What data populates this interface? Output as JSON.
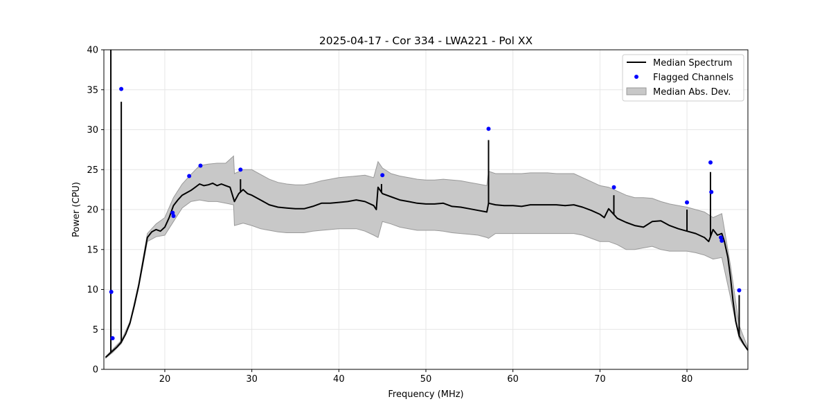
{
  "chart_data": {
    "type": "line",
    "title": "2025-04-17 - Cor 334 - LWA221 - Pol XX",
    "xlabel": "Frequency (MHz)",
    "ylabel": "Power (CPU)",
    "xlim": [
      13.0,
      87.0
    ],
    "ylim": [
      0,
      40
    ],
    "xticks": [
      "20",
      "30",
      "40",
      "50",
      "60",
      "70",
      "80"
    ],
    "yticks": [
      "0",
      "5",
      "10",
      "15",
      "20",
      "25",
      "30",
      "35",
      "40"
    ],
    "grid": true,
    "legend_position": "upper-right",
    "legend": {
      "median": "Median Spectrum",
      "flagged": "Flagged Channels",
      "mad": "Median Abs. Dev."
    },
    "colors": {
      "median": "#000000",
      "flagged": "#0000ff",
      "mad_fill": "#c8c8c8",
      "mad_edge": "#999999"
    },
    "series": [
      {
        "name": "Median Spectrum",
        "kind": "line",
        "x": [
          13.2,
          13.5,
          14.0,
          14.5,
          15.0,
          15.5,
          16.0,
          16.5,
          17.0,
          17.5,
          18.0,
          18.5,
          19.0,
          19.5,
          20.0,
          20.5,
          21.0,
          21.5,
          22.0,
          22.5,
          23.0,
          23.5,
          24.0,
          24.5,
          25.0,
          25.5,
          26.0,
          26.5,
          27.0,
          27.5,
          28.0,
          28.5,
          29.0,
          29.5,
          30.0,
          31.0,
          32.0,
          33.0,
          34.0,
          35.0,
          36.0,
          37.0,
          38.0,
          39.0,
          40.0,
          41.0,
          42.0,
          43.0,
          44.0,
          44.3,
          44.5,
          45.0,
          46.0,
          47.0,
          48.0,
          49.0,
          50.0,
          51.0,
          52.0,
          53.0,
          54.0,
          55.0,
          56.0,
          57.0,
          57.2,
          58.0,
          59.0,
          60.0,
          61.0,
          62.0,
          63.0,
          64.0,
          65.0,
          66.0,
          67.0,
          68.0,
          69.0,
          70.0,
          70.5,
          71.0,
          72.0,
          73.0,
          74.0,
          75.0,
          76.0,
          77.0,
          78.0,
          79.0,
          80.0,
          81.0,
          82.0,
          82.5,
          83.0,
          83.5,
          84.0,
          84.3,
          84.7,
          85.0,
          85.3,
          85.6,
          86.0,
          86.5,
          87.0
        ],
        "y": [
          1.5,
          1.8,
          2.3,
          2.8,
          3.4,
          4.4,
          5.8,
          8.0,
          10.5,
          13.5,
          16.5,
          17.2,
          17.5,
          17.3,
          17.8,
          19.0,
          20.5,
          21.2,
          21.8,
          22.1,
          22.4,
          22.8,
          23.2,
          23.0,
          23.1,
          23.3,
          23.0,
          23.2,
          23.0,
          22.8,
          21.0,
          22.0,
          22.5,
          22.0,
          21.8,
          21.2,
          20.6,
          20.3,
          20.2,
          20.1,
          20.1,
          20.4,
          20.8,
          20.8,
          20.9,
          21.0,
          21.2,
          21.0,
          20.5,
          20.0,
          22.8,
          22.0,
          21.6,
          21.2,
          21.0,
          20.8,
          20.7,
          20.7,
          20.8,
          20.4,
          20.3,
          20.1,
          19.9,
          19.7,
          20.8,
          20.6,
          20.5,
          20.5,
          20.4,
          20.6,
          20.6,
          20.6,
          20.6,
          20.5,
          20.6,
          20.3,
          19.9,
          19.4,
          19.0,
          20.1,
          18.9,
          18.4,
          18.0,
          17.8,
          18.5,
          18.6,
          18.0,
          17.6,
          17.3,
          17.0,
          16.5,
          16.0,
          17.5,
          16.8,
          17.0,
          16.0,
          14.0,
          11.5,
          8.5,
          6.0,
          4.2,
          3.2,
          2.4
        ],
        "spikes": [
          [
            13.8,
            40.0
          ],
          [
            15.0,
            33.5
          ],
          [
            28.7,
            23.8
          ],
          [
            44.9,
            23.2
          ],
          [
            57.2,
            28.7
          ],
          [
            71.6,
            21.8
          ],
          [
            80.0,
            20.0
          ],
          [
            82.7,
            24.7
          ],
          [
            86.0,
            9.3
          ]
        ]
      },
      {
        "name": "Flagged Channels",
        "kind": "scatter",
        "x": [
          13.85,
          14.0,
          15.0,
          20.9,
          21.0,
          22.8,
          24.1,
          28.7,
          45.0,
          57.2,
          71.6,
          80.0,
          82.7,
          82.8,
          83.9,
          84.0,
          86.0
        ],
        "y": [
          9.7,
          3.9,
          35.1,
          19.6,
          19.2,
          24.2,
          25.5,
          25.0,
          24.3,
          30.1,
          22.8,
          20.9,
          25.9,
          22.2,
          16.5,
          16.1,
          9.9
        ]
      },
      {
        "name": "Median Abs. Dev.",
        "kind": "band",
        "x": [
          13.2,
          14.0,
          15.0,
          16.0,
          17.0,
          18.0,
          19.0,
          20.0,
          21.0,
          22.0,
          23.0,
          24.0,
          25.0,
          26.0,
          27.0,
          27.9,
          28.0,
          29.0,
          30.0,
          31.0,
          32.0,
          33.0,
          34.0,
          35.0,
          36.0,
          37.0,
          38.0,
          39.0,
          40.0,
          41.0,
          42.0,
          43.0,
          44.0,
          44.5,
          45.0,
          46.0,
          47.0,
          48.0,
          49.0,
          50.0,
          51.0,
          52.0,
          53.0,
          54.0,
          55.0,
          56.0,
          57.0,
          57.2,
          58.0,
          59.0,
          60.0,
          61.0,
          62.0,
          63.0,
          64.0,
          65.0,
          66.0,
          67.0,
          68.0,
          69.0,
          70.0,
          71.0,
          72.0,
          73.0,
          74.0,
          75.0,
          76.0,
          77.0,
          78.0,
          79.0,
          80.0,
          81.0,
          82.0,
          83.0,
          84.0,
          85.0,
          86.0,
          87.0
        ],
        "lower": [
          1.4,
          2.1,
          3.2,
          5.6,
          10.2,
          16.0,
          16.6,
          16.8,
          18.5,
          20.2,
          21.0,
          21.2,
          21.0,
          21.0,
          20.8,
          20.6,
          18.0,
          18.3,
          18.0,
          17.6,
          17.4,
          17.2,
          17.1,
          17.1,
          17.1,
          17.3,
          17.4,
          17.5,
          17.6,
          17.6,
          17.6,
          17.3,
          16.8,
          16.5,
          18.5,
          18.2,
          17.8,
          17.6,
          17.4,
          17.4,
          17.4,
          17.3,
          17.1,
          17.0,
          16.9,
          16.8,
          16.5,
          16.4,
          17.0,
          17.0,
          17.0,
          17.0,
          17.0,
          17.0,
          17.0,
          17.0,
          17.0,
          17.0,
          16.8,
          16.4,
          16.0,
          16.0,
          15.6,
          15.0,
          15.0,
          15.2,
          15.4,
          15.0,
          14.8,
          14.8,
          14.8,
          14.6,
          14.3,
          13.8,
          14.0,
          9.0,
          3.8,
          2.3
        ],
        "upper": [
          1.6,
          2.5,
          3.6,
          6.0,
          10.8,
          17.0,
          18.2,
          19.0,
          21.5,
          23.2,
          24.4,
          25.5,
          25.7,
          25.8,
          25.8,
          26.7,
          24.5,
          25.0,
          25.0,
          24.4,
          23.8,
          23.4,
          23.2,
          23.1,
          23.1,
          23.3,
          23.6,
          23.8,
          24.0,
          24.1,
          24.2,
          24.3,
          24.0,
          26.0,
          25.2,
          24.5,
          24.2,
          24.0,
          23.8,
          23.7,
          23.7,
          23.8,
          23.7,
          23.6,
          23.4,
          23.2,
          23.0,
          24.8,
          24.5,
          24.5,
          24.5,
          24.5,
          24.6,
          24.6,
          24.6,
          24.5,
          24.5,
          24.5,
          24.0,
          23.5,
          23.0,
          22.8,
          22.3,
          21.8,
          21.5,
          21.5,
          21.4,
          21.0,
          20.7,
          20.5,
          20.3,
          20.0,
          19.7,
          19.0,
          19.5,
          13.0,
          5.5,
          2.7
        ]
      }
    ]
  }
}
